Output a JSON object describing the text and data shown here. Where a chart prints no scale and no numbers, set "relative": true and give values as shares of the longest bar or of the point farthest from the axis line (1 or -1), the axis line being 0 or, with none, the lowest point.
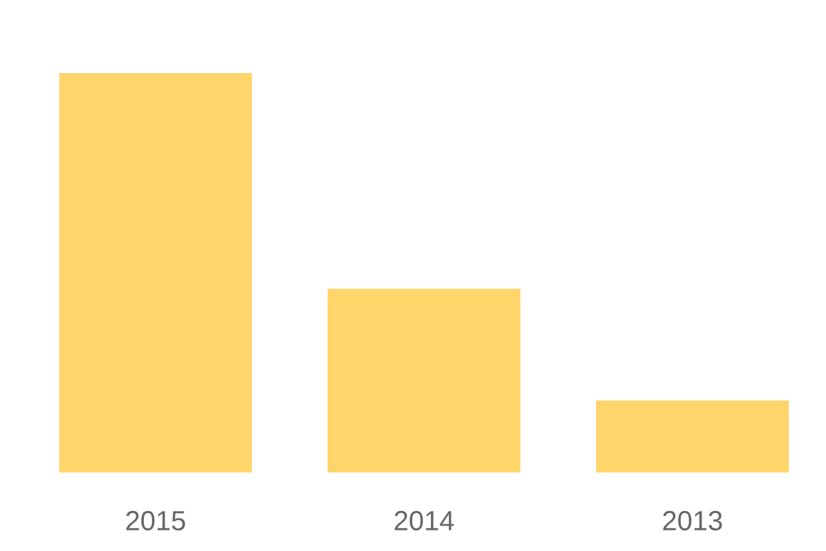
{
  "chart_data": {
    "type": "bar",
    "relative": true,
    "categories": [
      "2015",
      "2014",
      "2013"
    ],
    "values": [
      1,
      0.46,
      0.18
    ],
    "color": "#fed56b"
  }
}
